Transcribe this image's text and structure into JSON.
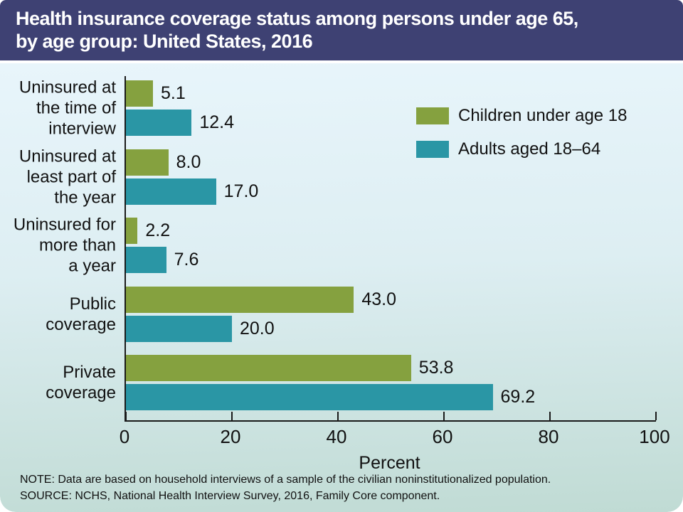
{
  "header": {
    "title_lines": [
      "Health insurance coverage status among persons under age 65,",
      "by age group: United States, 2016"
    ]
  },
  "colors": {
    "header_bg": "#3e4173",
    "title_text": "#ffffff",
    "children_bar": "#85a13f",
    "adults_bar": "#2a96a5",
    "axis": "#1a1a1a",
    "bg_gradient_top": "#e8f5fb",
    "bg_gradient_bottom": "#c0dbd4"
  },
  "chart_data": {
    "type": "bar",
    "orientation": "horizontal",
    "title": "Health insurance coverage status among persons under age 65, by age group: United States, 2016",
    "xlabel": "Percent",
    "xlim": [
      0,
      100
    ],
    "xticks": [
      0,
      20,
      40,
      60,
      80,
      100
    ],
    "grid": false,
    "legend_position": "upper-right",
    "categories": [
      "Uninsured at the time of interview",
      "Uninsured at least part of the year",
      "Uninsured for more than a year",
      "Public coverage",
      "Private coverage"
    ],
    "category_lines": [
      [
        "Uninsured at",
        "the time of",
        "interview"
      ],
      [
        "Uninsured at",
        "least part of",
        "the year"
      ],
      [
        "Uninsured for",
        "more than",
        "a year"
      ],
      [
        "Public",
        "coverage"
      ],
      [
        "Private",
        "coverage"
      ]
    ],
    "series": [
      {
        "name": "Children under age 18",
        "color": "#85a13f",
        "values": [
          5.1,
          8.0,
          2.2,
          43.0,
          53.8
        ]
      },
      {
        "name": "Adults aged 18–64",
        "color": "#2a96a5",
        "values": [
          12.4,
          17.0,
          7.6,
          20.0,
          69.2
        ]
      }
    ]
  },
  "footer": {
    "note": "NOTE: Data are based on household interviews of a sample of the civilian noninstitutionalized population.",
    "source": "SOURCE: NCHS, National Health Interview Survey, 2016, Family Core component."
  }
}
